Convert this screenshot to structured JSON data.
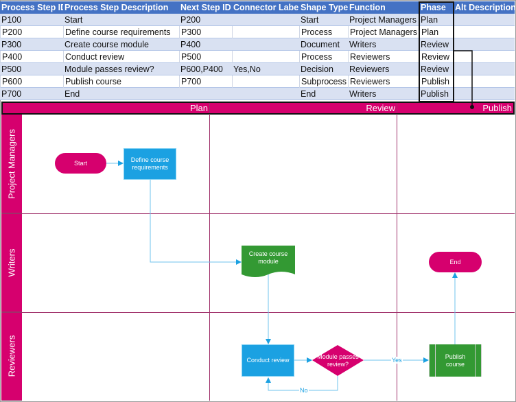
{
  "table": {
    "headers": [
      "Process Step ID",
      "Process Step Description",
      "Next Step ID",
      "Connector Label",
      "Shape Type",
      "Function",
      "Phase",
      "Alt Description"
    ],
    "rows": [
      [
        "P100",
        "Start",
        "P200",
        "",
        "Start",
        "Project Managers",
        "Plan",
        ""
      ],
      [
        "P200",
        "Define course requirements",
        "P300",
        "",
        "Process",
        "Project Managers",
        "Plan",
        ""
      ],
      [
        "P300",
        "Create course module",
        "P400",
        "",
        "Document",
        "Writers",
        "Review",
        ""
      ],
      [
        "P400",
        "Conduct review",
        "P500",
        "",
        "Process",
        "Reviewers",
        "Review",
        ""
      ],
      [
        "P500",
        "Module passes review?",
        "P600,P400",
        "Yes,No",
        "Decision",
        "Reviewers",
        "Review",
        ""
      ],
      [
        "P600",
        "Publish course",
        "P700",
        "",
        "Subprocess",
        "Reviewers",
        "Publish",
        ""
      ],
      [
        "P700",
        "End",
        "",
        "",
        "End",
        "Writers",
        "Publish",
        ""
      ]
    ]
  },
  "phases": [
    "Plan",
    "Review",
    "Publish"
  ],
  "lanes": [
    "Project Managers",
    "Writers",
    "Reviewers"
  ],
  "shapes": {
    "start": "Start",
    "define": [
      "Define course",
      "requirements"
    ],
    "create": [
      "Create course",
      "module"
    ],
    "conduct": "Conduct review",
    "decision": [
      "Module passes",
      "review?"
    ],
    "publish": [
      "Publish",
      "course"
    ],
    "end": "End"
  },
  "connectors": {
    "yes": "Yes",
    "no": "No"
  },
  "colors": {
    "header": "#4472c4",
    "band": "#d6006e",
    "process": "#1ba1e2",
    "document": "#339933",
    "connector": "#1ba1e2"
  }
}
